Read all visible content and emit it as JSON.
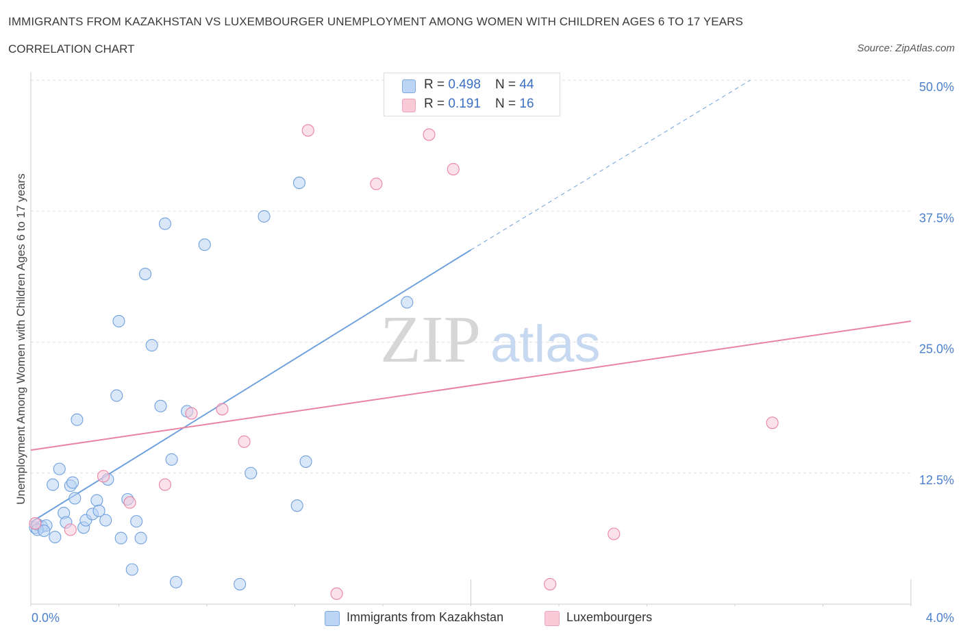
{
  "header": {
    "title": "IMMIGRANTS FROM KAZAKHSTAN VS LUXEMBOURGER UNEMPLOYMENT AMONG WOMEN WITH CHILDREN AGES 6 TO 17 YEARS",
    "subtitle": "CORRELATION CHART",
    "source": "Source: ZipAtlas.com"
  },
  "watermark": {
    "zip": "ZIP",
    "atlas": "atlas"
  },
  "legend": {
    "rows": [
      {
        "r_label": "R = ",
        "r_value": "0.498",
        "n_label": "N = ",
        "n_value": "44",
        "color": "#a9c8f0"
      },
      {
        "r_label": "R = ",
        "r_value": " 0.191",
        "n_label": "N = ",
        "n_value": "16",
        "color": "#f5b8ca"
      }
    ]
  },
  "bottom_legend": {
    "kazakhstan": "Immigrants from Kazakhstan",
    "luxembourgers": "Luxembourgers"
  },
  "chart_data": {
    "type": "scatter",
    "xlabel": "",
    "ylabel": "Unemployment Among Women with Children Ages 6 to 17 years",
    "xlim": [
      0.0,
      4.0
    ],
    "ylim": [
      0.0,
      50.0
    ],
    "x_tick_labels": [
      "0.0%",
      "4.0%"
    ],
    "y_ticks": [
      12.5,
      25.0,
      37.5,
      50.0
    ],
    "y_tick_labels": [
      "12.5%",
      "25.0%",
      "37.5%",
      "50.0%"
    ],
    "grid": true,
    "legend_position": "top-center",
    "series": [
      {
        "name": "Immigrants from Kazakhstan",
        "color": "#6fa0de",
        "fill": "#b9d3f4",
        "trend": {
          "x0": 0.0,
          "y0": 7.8,
          "x1": 2.0,
          "y1": 33.8,
          "dashed_to_x": 3.27,
          "dashed_to_y": 50.0
        },
        "points": [
          [
            0.02,
            7.3
          ],
          [
            0.03,
            7.6
          ],
          [
            0.05,
            7.4
          ],
          [
            0.07,
            7.5
          ],
          [
            0.11,
            6.4
          ],
          [
            0.13,
            12.9
          ],
          [
            0.1,
            11.4
          ],
          [
            0.15,
            8.7
          ],
          [
            0.16,
            7.8
          ],
          [
            0.18,
            11.3
          ],
          [
            0.19,
            11.6
          ],
          [
            0.2,
            10.1
          ],
          [
            0.21,
            17.6
          ],
          [
            0.24,
            7.3
          ],
          [
            0.25,
            8.0
          ],
          [
            0.28,
            8.6
          ],
          [
            0.3,
            9.9
          ],
          [
            0.31,
            8.9
          ],
          [
            0.34,
            8.0
          ],
          [
            0.35,
            11.9
          ],
          [
            0.39,
            19.9
          ],
          [
            0.4,
            27.0
          ],
          [
            0.41,
            6.3
          ],
          [
            0.44,
            10.0
          ],
          [
            0.46,
            3.3
          ],
          [
            0.48,
            7.9
          ],
          [
            0.5,
            6.3
          ],
          [
            0.52,
            31.5
          ],
          [
            0.55,
            24.7
          ],
          [
            0.59,
            18.9
          ],
          [
            0.61,
            36.3
          ],
          [
            0.64,
            13.8
          ],
          [
            0.66,
            2.1
          ],
          [
            0.71,
            18.4
          ],
          [
            0.79,
            34.3
          ],
          [
            0.95,
            1.9
          ],
          [
            1.0,
            12.5
          ],
          [
            1.06,
            37.0
          ],
          [
            1.21,
            9.4
          ],
          [
            1.22,
            40.2
          ],
          [
            1.25,
            13.6
          ],
          [
            1.71,
            28.8
          ],
          [
            0.03,
            7.1
          ],
          [
            0.06,
            7.0
          ]
        ]
      },
      {
        "name": "Luxembourgers",
        "color": "#e983a3",
        "fill": "#f8c9d7",
        "trend": {
          "x0": 0.0,
          "y0": 14.7,
          "x1": 4.0,
          "y1": 27.0
        },
        "points": [
          [
            0.02,
            7.7
          ],
          [
            0.18,
            7.1
          ],
          [
            0.33,
            12.2
          ],
          [
            0.45,
            9.7
          ],
          [
            0.61,
            11.4
          ],
          [
            0.73,
            18.2
          ],
          [
            0.87,
            18.6
          ],
          [
            0.97,
            15.5
          ],
          [
            1.26,
            45.2
          ],
          [
            1.39,
            1.0
          ],
          [
            1.57,
            40.1
          ],
          [
            1.81,
            44.8
          ],
          [
            1.92,
            41.5
          ],
          [
            2.36,
            1.9
          ],
          [
            2.65,
            6.7
          ],
          [
            3.37,
            17.3
          ]
        ]
      }
    ]
  }
}
